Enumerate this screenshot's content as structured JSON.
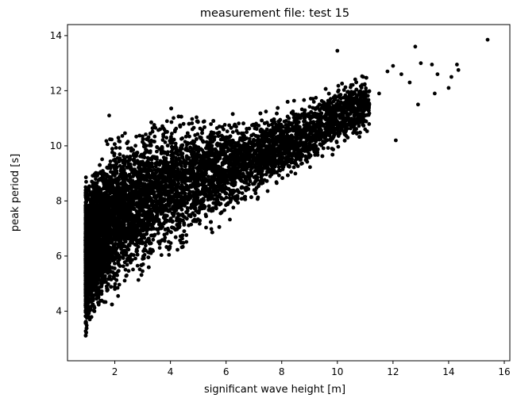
{
  "chart_data": {
    "type": "scatter",
    "title": "measurement file: test 15",
    "xlabel": "significant wave height [m]",
    "ylabel": "peak period [s]",
    "xlim": [
      0.3,
      16.2
    ],
    "ylim": [
      2.2,
      14.4
    ],
    "xticks": [
      2,
      4,
      6,
      8,
      10,
      12,
      14,
      16
    ],
    "yticks": [
      4,
      6,
      8,
      10,
      12,
      14
    ],
    "grid": false,
    "legend": "none",
    "marker_color": "#000000",
    "marker": "circle",
    "point_count_estimate": 20000,
    "cloud_envelope": {
      "x": [
        1.0,
        1.5,
        2.0,
        3.0,
        4.0,
        5.0,
        6.0,
        7.0,
        8.0,
        9.0,
        10.0,
        11.0
      ],
      "y_min": [
        2.8,
        3.6,
        4.2,
        4.9,
        5.6,
        6.3,
        7.0,
        7.7,
        8.4,
        9.0,
        9.6,
        10.3
      ],
      "y_max": [
        9.2,
        10.2,
        10.8,
        11.3,
        11.6,
        11.5,
        11.4,
        11.4,
        11.6,
        12.0,
        12.5,
        12.8
      ]
    },
    "outliers": [
      {
        "x": 1.8,
        "y": 11.1
      },
      {
        "x": 10.0,
        "y": 13.45
      },
      {
        "x": 11.8,
        "y": 12.7
      },
      {
        "x": 12.0,
        "y": 12.9
      },
      {
        "x": 12.3,
        "y": 12.6
      },
      {
        "x": 12.8,
        "y": 13.6
      },
      {
        "x": 12.6,
        "y": 12.3
      },
      {
        "x": 13.0,
        "y": 13.0
      },
      {
        "x": 13.4,
        "y": 12.95
      },
      {
        "x": 13.6,
        "y": 12.6
      },
      {
        "x": 13.5,
        "y": 11.9
      },
      {
        "x": 14.0,
        "y": 12.1
      },
      {
        "x": 14.1,
        "y": 12.5
      },
      {
        "x": 14.3,
        "y": 12.95
      },
      {
        "x": 14.35,
        "y": 12.75
      },
      {
        "x": 15.4,
        "y": 13.85
      },
      {
        "x": 12.1,
        "y": 10.2
      },
      {
        "x": 12.9,
        "y": 11.5
      },
      {
        "x": 11.5,
        "y": 11.9
      },
      {
        "x": 11.0,
        "y": 10.6
      }
    ]
  }
}
